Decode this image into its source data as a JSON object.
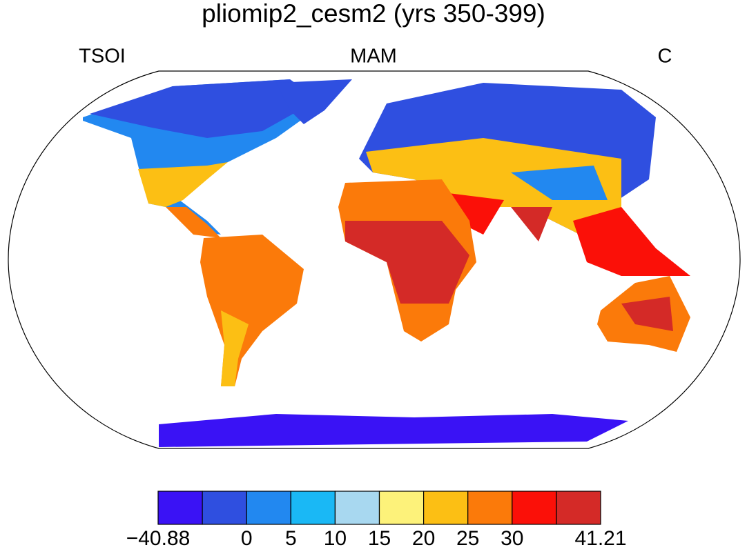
{
  "title": "pliomip2_cesm2 (yrs 350-399)",
  "labels": {
    "left": "TSOI",
    "center": "MAM",
    "right": "C"
  },
  "colorbar": {
    "colors": [
      "#3a12f5",
      "#2f4fe0",
      "#2288f0",
      "#1ab8f5",
      "#a8d8f0",
      "#fdf27a",
      "#fcbf14",
      "#fb7a0a",
      "#fb1008",
      "#d42a27"
    ],
    "ticks": [
      {
        "value": -40.88,
        "label": "−40.88"
      },
      null,
      0,
      5,
      10,
      15,
      20,
      25,
      30,
      null,
      41.21
    ]
  }
}
